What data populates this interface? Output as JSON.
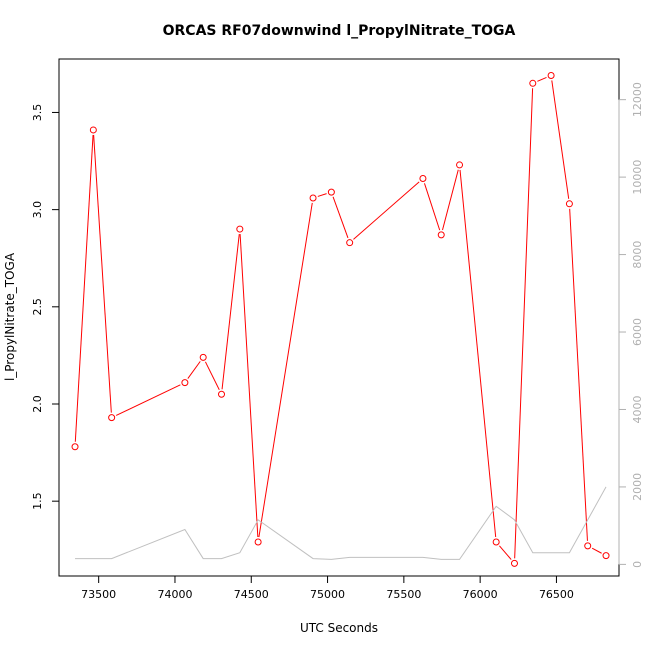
{
  "chart_data": {
    "type": "line",
    "title": "ORCAS RF07downwind l_PropylNitrate_TOGA",
    "xlabel": "UTC Seconds",
    "ylabel": "l_PropylNitrate_TOGA",
    "xlim": [
      73240,
      76910
    ],
    "ylim": [
      1.115,
      3.775
    ],
    "y2lim": [
      -300,
      13050
    ],
    "x_ticks": [
      73500,
      74000,
      74500,
      75000,
      75500,
      76000,
      76500
    ],
    "y_ticks": [
      1.5,
      2.0,
      2.5,
      3.0,
      3.5
    ],
    "y_tick_labels": [
      "1.5",
      "2.0",
      "2.5",
      "3.0",
      "3.5"
    ],
    "y2_ticks": [
      0,
      2000,
      4000,
      6000,
      8000,
      10000,
      12000
    ],
    "grid": false,
    "colors": {
      "primary": "#ff0000",
      "secondary": "#c0c0c0"
    },
    "series": [
      {
        "axis": "left",
        "style": "line-points",
        "color": "#ff0000",
        "x": [
          73345,
          73465,
          73585,
          74065,
          74185,
          74305,
          74425,
          74545,
          74905,
          75025,
          75145,
          75625,
          75745,
          75865,
          76105,
          76225,
          76345,
          76465,
          76585,
          76705,
          76825
        ],
        "values": [
          1.78,
          3.41,
          1.93,
          2.11,
          2.24,
          2.05,
          2.9,
          1.29,
          3.06,
          3.09,
          2.83,
          3.16,
          2.87,
          3.23,
          1.29,
          1.18,
          3.65,
          3.69,
          3.03,
          1.27,
          1.22
        ]
      },
      {
        "axis": "right",
        "style": "line",
        "color": "#c0c0c0",
        "x": [
          73345,
          73585,
          74065,
          74185,
          74305,
          74425,
          74545,
          74905,
          75025,
          75145,
          75625,
          75745,
          75865,
          76105,
          76225,
          76345,
          76465,
          76585,
          76825
        ],
        "values": [
          150,
          150,
          900,
          150,
          150,
          300,
          1150,
          150,
          130,
          180,
          180,
          130,
          130,
          1500,
          1150,
          300,
          300,
          300,
          2000
        ]
      }
    ]
  }
}
